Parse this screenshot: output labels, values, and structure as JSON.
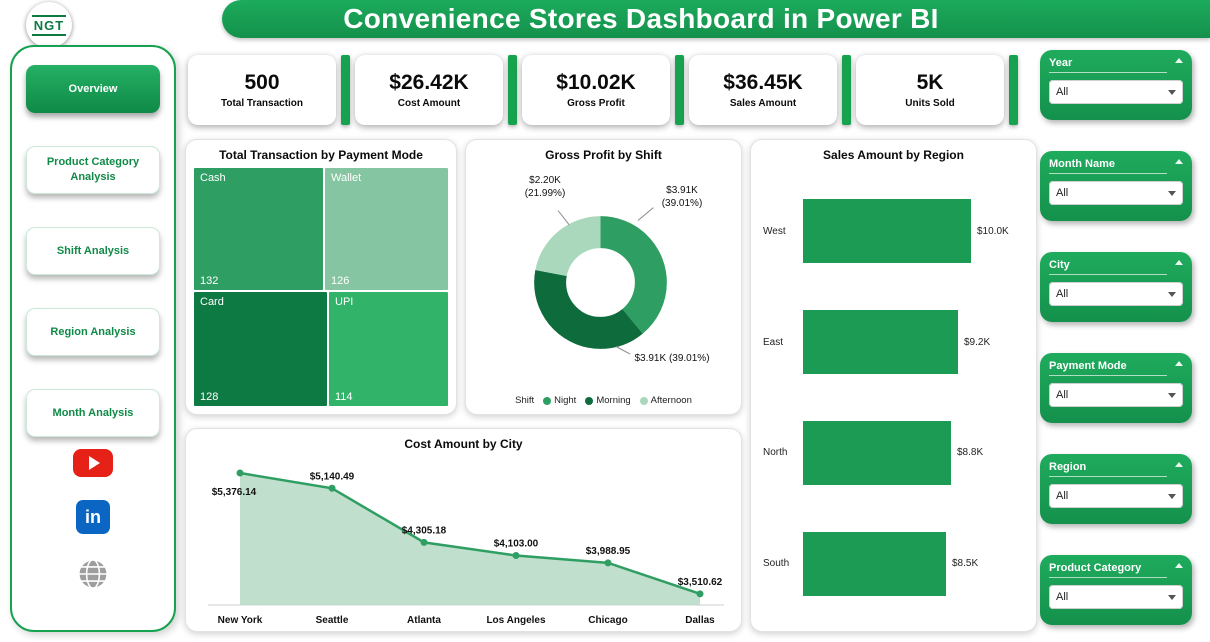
{
  "header": {
    "title": "Convenience Stores Dashboard in Power BI",
    "logo_text": "NGT"
  },
  "sidebar": {
    "items": [
      {
        "label": "Overview",
        "active": true
      },
      {
        "label": "Product Category Analysis",
        "active": false
      },
      {
        "label": "Shift Analysis",
        "active": false
      },
      {
        "label": "Region Analysis",
        "active": false
      },
      {
        "label": "Month Analysis",
        "active": false
      }
    ],
    "social": [
      "youtube",
      "linkedin",
      "website"
    ],
    "linkedin_glyph": "in"
  },
  "kpis": [
    {
      "value": "500",
      "label": "Total Transaction"
    },
    {
      "value": "$26.42K",
      "label": "Cost Amount"
    },
    {
      "value": "$10.02K",
      "label": "Gross Profit"
    },
    {
      "value": "$36.45K",
      "label": "Sales Amount"
    },
    {
      "value": "5K",
      "label": "Units Sold"
    }
  ],
  "slicers": [
    {
      "label": "Year",
      "value": "All"
    },
    {
      "label": "Month Name",
      "value": "All"
    },
    {
      "label": "City",
      "value": "All"
    },
    {
      "label": "Payment Mode",
      "value": "All"
    },
    {
      "label": "Region",
      "value": "All"
    },
    {
      "label": "Product Category",
      "value": "All"
    }
  ],
  "colors": {
    "primary_green": "#17a24f",
    "dark_green": "#0e6b3c",
    "medium_green": "#2f9e63",
    "bright_green": "#31b469",
    "light_green": "#85c5a1",
    "pale_green": "#a9d8bd",
    "area_fill": "#b9dcc6",
    "youtube_red": "#e62117",
    "linkedin_blue": "#0a66c2"
  },
  "chart_data": [
    {
      "type": "treemap",
      "title": "Total Transaction by Payment Mode",
      "items": [
        {
          "label": "Cash",
          "value": 132,
          "color": "#2f9e63"
        },
        {
          "label": "Wallet",
          "value": 126,
          "color": "#85c5a1"
        },
        {
          "label": "Card",
          "value": 128,
          "color": "#0e7a43"
        },
        {
          "label": "UPI",
          "value": 114,
          "color": "#31b469"
        }
      ]
    },
    {
      "type": "pie",
      "title": "Gross Profit by Shift",
      "legend_title": "Shift",
      "legend_position": "bottom",
      "segments": [
        {
          "label": "Night",
          "value_label": "$3.91K (39.01%)",
          "percent": 39.01,
          "color": "#2f9e63"
        },
        {
          "label": "Morning",
          "value_label": "$3.91K (39.01%)",
          "percent": 39.01,
          "color": "#0e6b3c"
        },
        {
          "label": "Afternoon",
          "value_label": "$2.20K (21.99%)",
          "percent": 21.99,
          "color": "#a9d8bd"
        }
      ]
    },
    {
      "type": "bar",
      "title": "Sales Amount by Region",
      "orientation": "horizontal",
      "categories": [
        "West",
        "East",
        "North",
        "South"
      ],
      "values": [
        10.0,
        9.2,
        8.8,
        8.5
      ],
      "value_labels": [
        "$10.0K",
        "$9.2K",
        "$8.8K",
        "$8.5K"
      ],
      "xlim": [
        0,
        10.5
      ]
    },
    {
      "type": "area",
      "title": "Cost Amount by City",
      "categories": [
        "New York",
        "Seattle",
        "Atlanta",
        "Los Angeles",
        "Chicago",
        "Dallas"
      ],
      "values": [
        5376.14,
        5140.49,
        4305.18,
        4103.0,
        3988.95,
        3510.62
      ],
      "value_labels": [
        "$5,376.14",
        "$5,140.49",
        "$4,305.18",
        "$4,103.00",
        "$3,988.95",
        "$3,510.62"
      ],
      "ylim": [
        3400,
        5500
      ]
    }
  ]
}
